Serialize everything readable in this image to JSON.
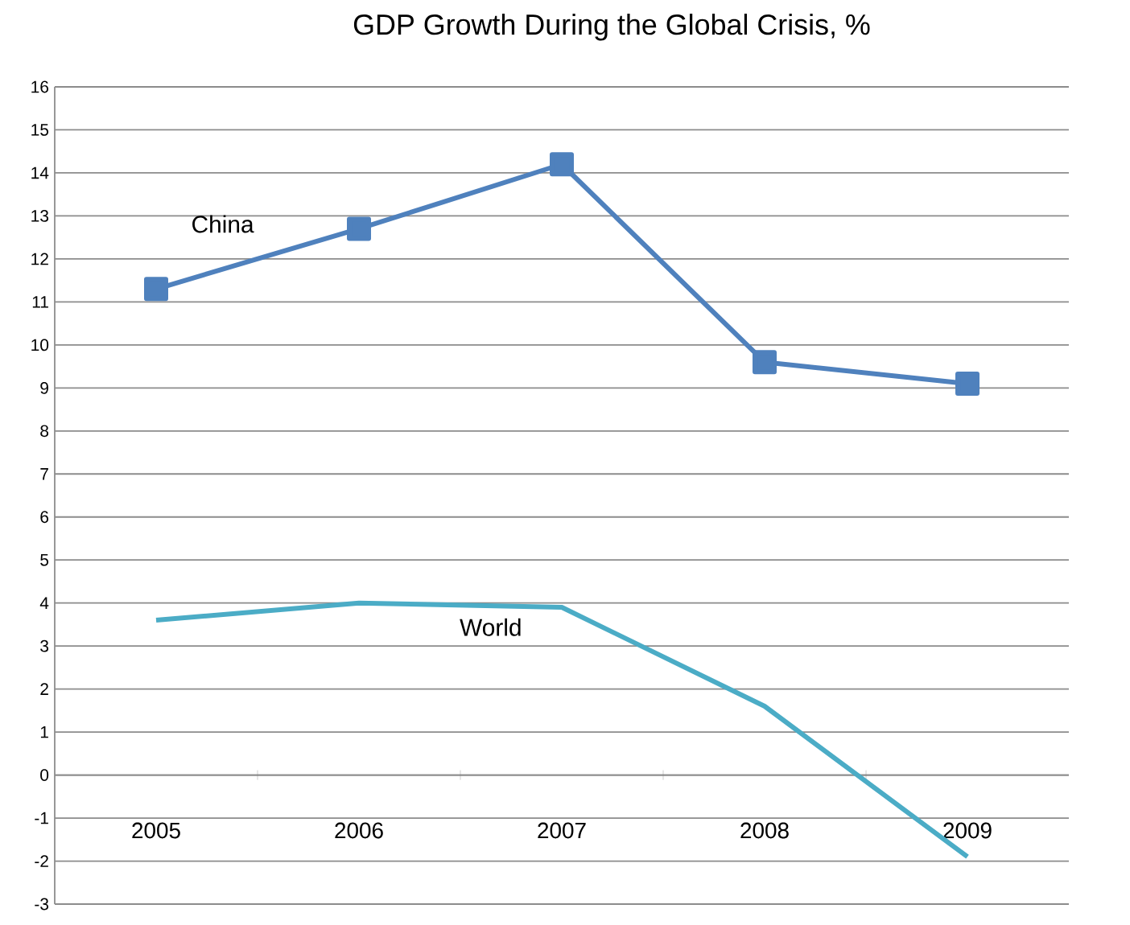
{
  "chart_data": {
    "type": "line",
    "title": "GDP Growth During the Global Crisis, %",
    "categories": [
      "2005",
      "2006",
      "2007",
      "2008",
      "2009"
    ],
    "series": [
      {
        "name": "China",
        "color": "#4f81bd",
        "marker": "square",
        "values": [
          11.3,
          12.7,
          14.2,
          9.6,
          9.1
        ]
      },
      {
        "name": "World",
        "color": "#4bacc6",
        "marker": "none",
        "values": [
          3.6,
          4.0,
          3.9,
          1.6,
          -1.9
        ]
      }
    ],
    "ylim": [
      -3,
      16
    ],
    "yticks": [
      -3,
      -2,
      -1,
      0,
      1,
      2,
      3,
      4,
      5,
      6,
      7,
      8,
      9,
      10,
      11,
      12,
      13,
      14,
      15,
      16
    ],
    "grid": "y"
  }
}
